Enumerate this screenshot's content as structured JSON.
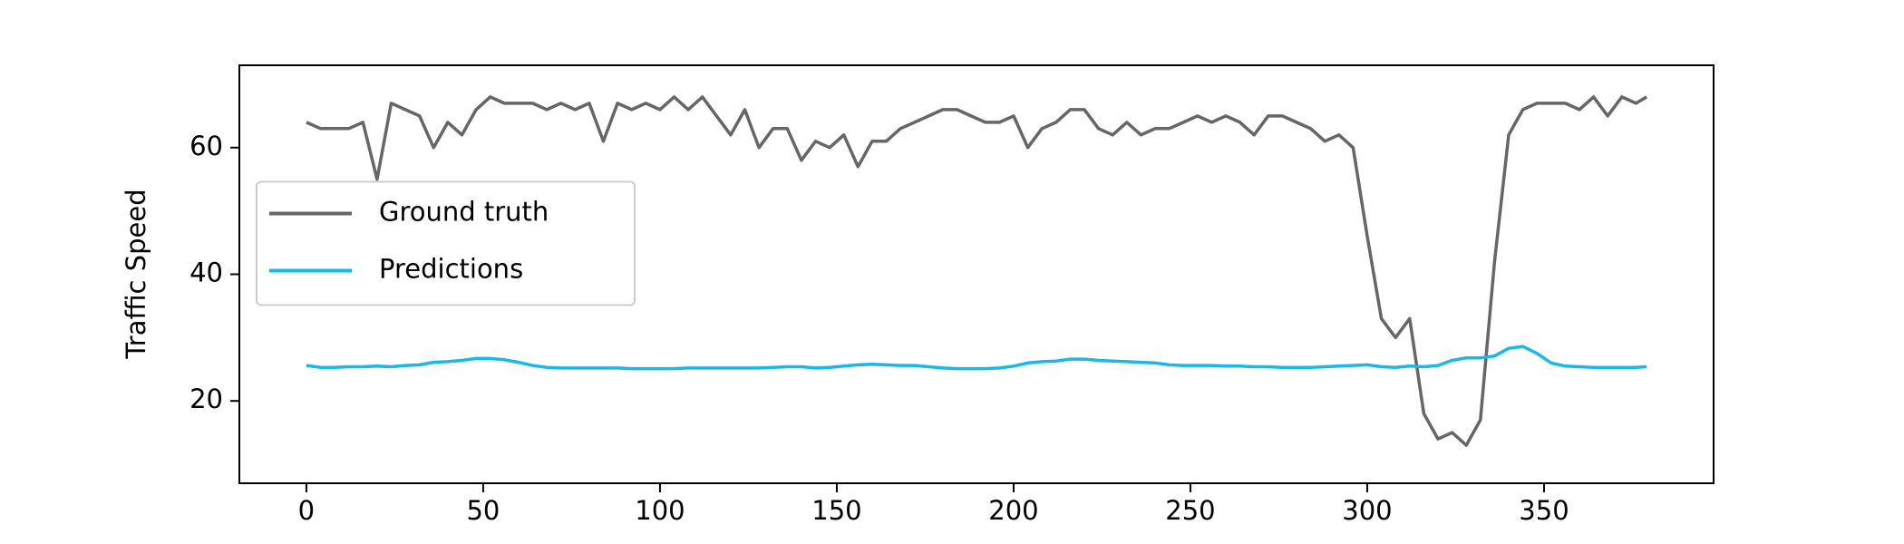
{
  "chart_data": {
    "type": "line",
    "ylabel": "Traffic Speed",
    "x": [
      0,
      4,
      8,
      12,
      16,
      20,
      24,
      28,
      32,
      36,
      40,
      44,
      48,
      52,
      56,
      60,
      64,
      68,
      72,
      76,
      80,
      84,
      88,
      92,
      96,
      100,
      104,
      108,
      112,
      116,
      120,
      124,
      128,
      132,
      136,
      140,
      144,
      148,
      152,
      156,
      160,
      164,
      168,
      172,
      176,
      180,
      184,
      188,
      192,
      196,
      200,
      204,
      208,
      212,
      216,
      220,
      224,
      228,
      232,
      236,
      240,
      244,
      248,
      252,
      256,
      260,
      264,
      268,
      272,
      276,
      280,
      284,
      288,
      292,
      296,
      300,
      304,
      308,
      312,
      316,
      320,
      324,
      328,
      332,
      336,
      340,
      344,
      348,
      352,
      356,
      360,
      364,
      368,
      372,
      376,
      379
    ],
    "series": [
      {
        "name": "Ground truth",
        "color": "#666666",
        "values": [
          64,
          63,
          63,
          63,
          64,
          55,
          67,
          66,
          65,
          60,
          64,
          62,
          66,
          68,
          67,
          67,
          67,
          66,
          67,
          66,
          67,
          61,
          67,
          66,
          67,
          66,
          68,
          66,
          68,
          65,
          62,
          66,
          60,
          63,
          63,
          58,
          61,
          60,
          62,
          57,
          61,
          61,
          63,
          64,
          65,
          66,
          66,
          65,
          64,
          64,
          65,
          60,
          63,
          64,
          66,
          66,
          63,
          62,
          64,
          62,
          63,
          63,
          64,
          65,
          64,
          65,
          64,
          62,
          65,
          65,
          64,
          63,
          61,
          62,
          60,
          46,
          33,
          30,
          33,
          18,
          14,
          15,
          13,
          17,
          42,
          62,
          66,
          67,
          67,
          67,
          66,
          68,
          65,
          68,
          67,
          68
        ]
      },
      {
        "name": "Predictions",
        "color": "#1ab8ea",
        "values": [
          25.6,
          25.3,
          25.3,
          25.4,
          25.4,
          25.5,
          25.4,
          25.6,
          25.7,
          26.1,
          26.2,
          26.4,
          26.7,
          26.7,
          26.5,
          26.1,
          25.6,
          25.3,
          25.2,
          25.2,
          25.2,
          25.2,
          25.2,
          25.1,
          25.1,
          25.1,
          25.1,
          25.2,
          25.2,
          25.2,
          25.2,
          25.2,
          25.2,
          25.3,
          25.4,
          25.4,
          25.2,
          25.3,
          25.5,
          25.7,
          25.8,
          25.7,
          25.6,
          25.6,
          25.4,
          25.2,
          25.1,
          25.1,
          25.1,
          25.2,
          25.5,
          26.0,
          26.2,
          26.3,
          26.6,
          26.6,
          26.4,
          26.3,
          26.2,
          26.1,
          26.0,
          25.7,
          25.6,
          25.6,
          25.6,
          25.5,
          25.5,
          25.4,
          25.4,
          25.3,
          25.3,
          25.3,
          25.4,
          25.5,
          25.6,
          25.7,
          25.4,
          25.3,
          25.5,
          25.4,
          25.6,
          26.4,
          26.8,
          26.8,
          27.1,
          28.3,
          28.6,
          27.5,
          26.0,
          25.5,
          25.4,
          25.3,
          25.3,
          25.3,
          25.3,
          25.4
        ]
      }
    ],
    "xlim": [
      -18.95,
      397.95
    ],
    "xticks": [
      0,
      50,
      100,
      150,
      200,
      250,
      300,
      350
    ],
    "ylim": [
      7,
      73
    ],
    "yticks": [
      20,
      40,
      60
    ],
    "legend": "center left",
    "grid": false
  }
}
